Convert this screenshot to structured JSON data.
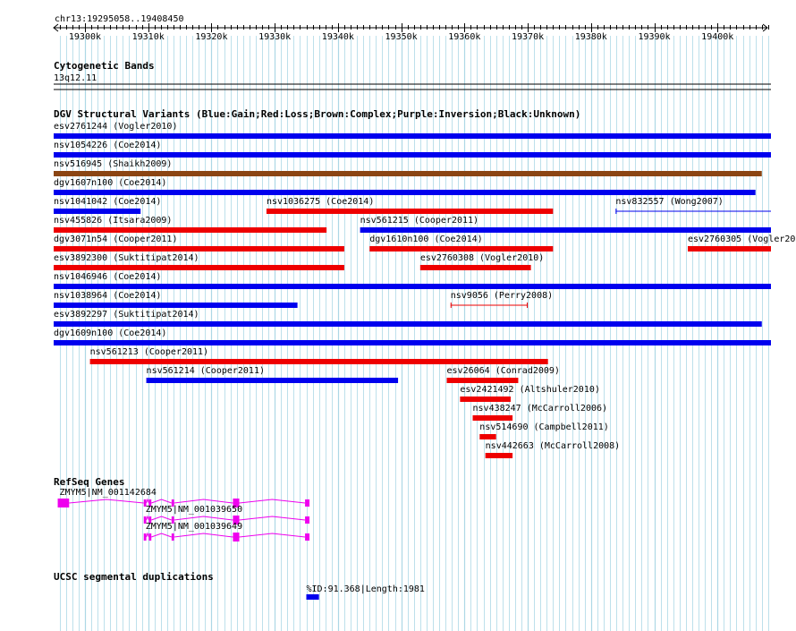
{
  "region": {
    "label": "chr13:19295058..19408450",
    "start": 19295058,
    "end": 19408450
  },
  "ruler": {
    "ticks": [
      {
        "pos": 19300000,
        "label": "19300k"
      },
      {
        "pos": 19310000,
        "label": "19310k"
      },
      {
        "pos": 19320000,
        "label": "19320k"
      },
      {
        "pos": 19330000,
        "label": "19330k"
      },
      {
        "pos": 19340000,
        "label": "19340k"
      },
      {
        "pos": 19350000,
        "label": "19350k"
      },
      {
        "pos": 19360000,
        "label": "19360k"
      },
      {
        "pos": 19370000,
        "label": "19370k"
      },
      {
        "pos": 19380000,
        "label": "19380k"
      },
      {
        "pos": 19390000,
        "label": "19390k"
      },
      {
        "pos": 19400000,
        "label": "19400k"
      }
    ]
  },
  "colors": {
    "gain": "#0000ee",
    "loss": "#ee0000",
    "complex": "#8b4513",
    "gene": "#ee00ee",
    "segdup": "#0000ee",
    "grid": "#add8e6"
  },
  "cytobands": {
    "title": "Cytogenetic Bands",
    "band": "13q12.11"
  },
  "dgv": {
    "title": "DGV Structural Variants (Blue:Gain;Red:Loss;Brown:Complex;Purple:Inversion;Black:Unknown)",
    "variants": [
      {
        "label": "esv2761244 (Vogler2010)",
        "start": 19295058,
        "end": 19408450,
        "type": "gain",
        "row": 0
      },
      {
        "label": "nsv1054226 (Coe2014)",
        "start": 19295058,
        "end": 19408450,
        "type": "gain",
        "row": 1
      },
      {
        "label": "nsv516945 (Shaikh2009)",
        "start": 19295058,
        "end": 19407000,
        "type": "complex",
        "row": 2
      },
      {
        "label": "dgv1607n100 (Coe2014)",
        "start": 19295058,
        "end": 19406000,
        "type": "gain",
        "row": 3
      },
      {
        "label": "nsv1041042 (Coe2014)",
        "start": 19295058,
        "end": 19308800,
        "type": "gain",
        "row": 4
      },
      {
        "label": "nsv1036275 (Coe2014)",
        "start": 19328700,
        "end": 19374000,
        "type": "loss",
        "row": 4
      },
      {
        "label": "nsv832557 (Wong2007)",
        "start": 19383900,
        "end": 19408450,
        "type": "gain",
        "row": 4,
        "style": "thin"
      },
      {
        "label": "nsv455826 (Itsara2009)",
        "start": 19295058,
        "end": 19338200,
        "type": "loss",
        "row": 5
      },
      {
        "label": "nsv561215 (Cooper2011)",
        "start": 19343500,
        "end": 19408450,
        "type": "gain",
        "row": 5
      },
      {
        "label": "dgv3071n54 (Cooper2011)",
        "start": 19295058,
        "end": 19341000,
        "type": "loss",
        "row": 6
      },
      {
        "label": "dgv1610n100 (Coe2014)",
        "start": 19345000,
        "end": 19374000,
        "type": "loss",
        "row": 6
      },
      {
        "label": "esv2760305 (Vogler2010)",
        "start": 19395300,
        "end": 19408450,
        "type": "loss",
        "row": 6
      },
      {
        "label": "esv3892300 (Suktitipat2014)",
        "start": 19295058,
        "end": 19341000,
        "type": "loss",
        "row": 7
      },
      {
        "label": "esv2760308 (Vogler2010)",
        "start": 19353000,
        "end": 19370500,
        "type": "loss",
        "row": 7
      },
      {
        "label": "nsv1046946 (Coe2014)",
        "start": 19295058,
        "end": 19408450,
        "type": "gain",
        "row": 8
      },
      {
        "label": "nsv1038964 (Coe2014)",
        "start": 19295058,
        "end": 19333600,
        "type": "gain",
        "row": 9
      },
      {
        "label": "nsv9056 (Perry2008)",
        "start": 19357800,
        "end": 19370000,
        "type": "loss",
        "row": 9,
        "style": "thin"
      },
      {
        "label": "esv3892297 (Suktitipat2014)",
        "start": 19295058,
        "end": 19407000,
        "type": "gain",
        "row": 10
      },
      {
        "label": "dgv1609n100 (Coe2014)",
        "start": 19295058,
        "end": 19408450,
        "type": "gain",
        "row": 11
      },
      {
        "label": "nsv561213 (Cooper2011)",
        "start": 19300800,
        "end": 19373200,
        "type": "loss",
        "row": 12
      },
      {
        "label": "nsv561214 (Cooper2011)",
        "start": 19309700,
        "end": 19349500,
        "type": "gain",
        "row": 13
      },
      {
        "label": "esv26064 (Conrad2009)",
        "start": 19357200,
        "end": 19368500,
        "type": "loss",
        "row": 13
      },
      {
        "label": "esv2421492 (Altshuler2010)",
        "start": 19359300,
        "end": 19367300,
        "type": "loss",
        "row": 14
      },
      {
        "label": "nsv438247 (McCarroll2006)",
        "start": 19361300,
        "end": 19367600,
        "type": "loss",
        "row": 15
      },
      {
        "label": "nsv514690 (Campbell2011)",
        "start": 19362400,
        "end": 19365000,
        "type": "loss",
        "row": 16
      },
      {
        "label": "nsv442663 (McCarroll2008)",
        "start": 19363300,
        "end": 19367600,
        "type": "loss",
        "row": 17
      }
    ]
  },
  "refseq": {
    "title": "RefSeq Genes",
    "genes": [
      {
        "label": "ZMYM5|NM_001142684",
        "start": 19295700,
        "end": 19335500,
        "row": 0,
        "exons": [
          [
            19295700,
            19297500
          ],
          [
            19309300,
            19309700
          ],
          [
            19310100,
            19310500
          ],
          [
            19313700,
            19314100
          ],
          [
            19323400,
            19324400
          ],
          [
            19334800,
            19335500
          ]
        ]
      },
      {
        "label": "ZMYM5|NM_001039650",
        "start": 19309300,
        "end": 19335500,
        "row": 1,
        "exons": [
          [
            19309300,
            19309700
          ],
          [
            19310100,
            19310500
          ],
          [
            19313700,
            19314100
          ],
          [
            19323400,
            19324400
          ],
          [
            19334800,
            19335500
          ]
        ]
      },
      {
        "label": "ZMYM5|NM_001039649",
        "start": 19309300,
        "end": 19335500,
        "row": 2,
        "exons": [
          [
            19309300,
            19309700
          ],
          [
            19310100,
            19310500
          ],
          [
            19313700,
            19314100
          ],
          [
            19323400,
            19324400
          ],
          [
            19334800,
            19335500
          ]
        ]
      }
    ]
  },
  "segdup": {
    "title": "UCSC segmental duplications",
    "features": [
      {
        "label": "%ID:91.368|Length:1981",
        "start": 19335000,
        "end": 19337000
      }
    ]
  }
}
